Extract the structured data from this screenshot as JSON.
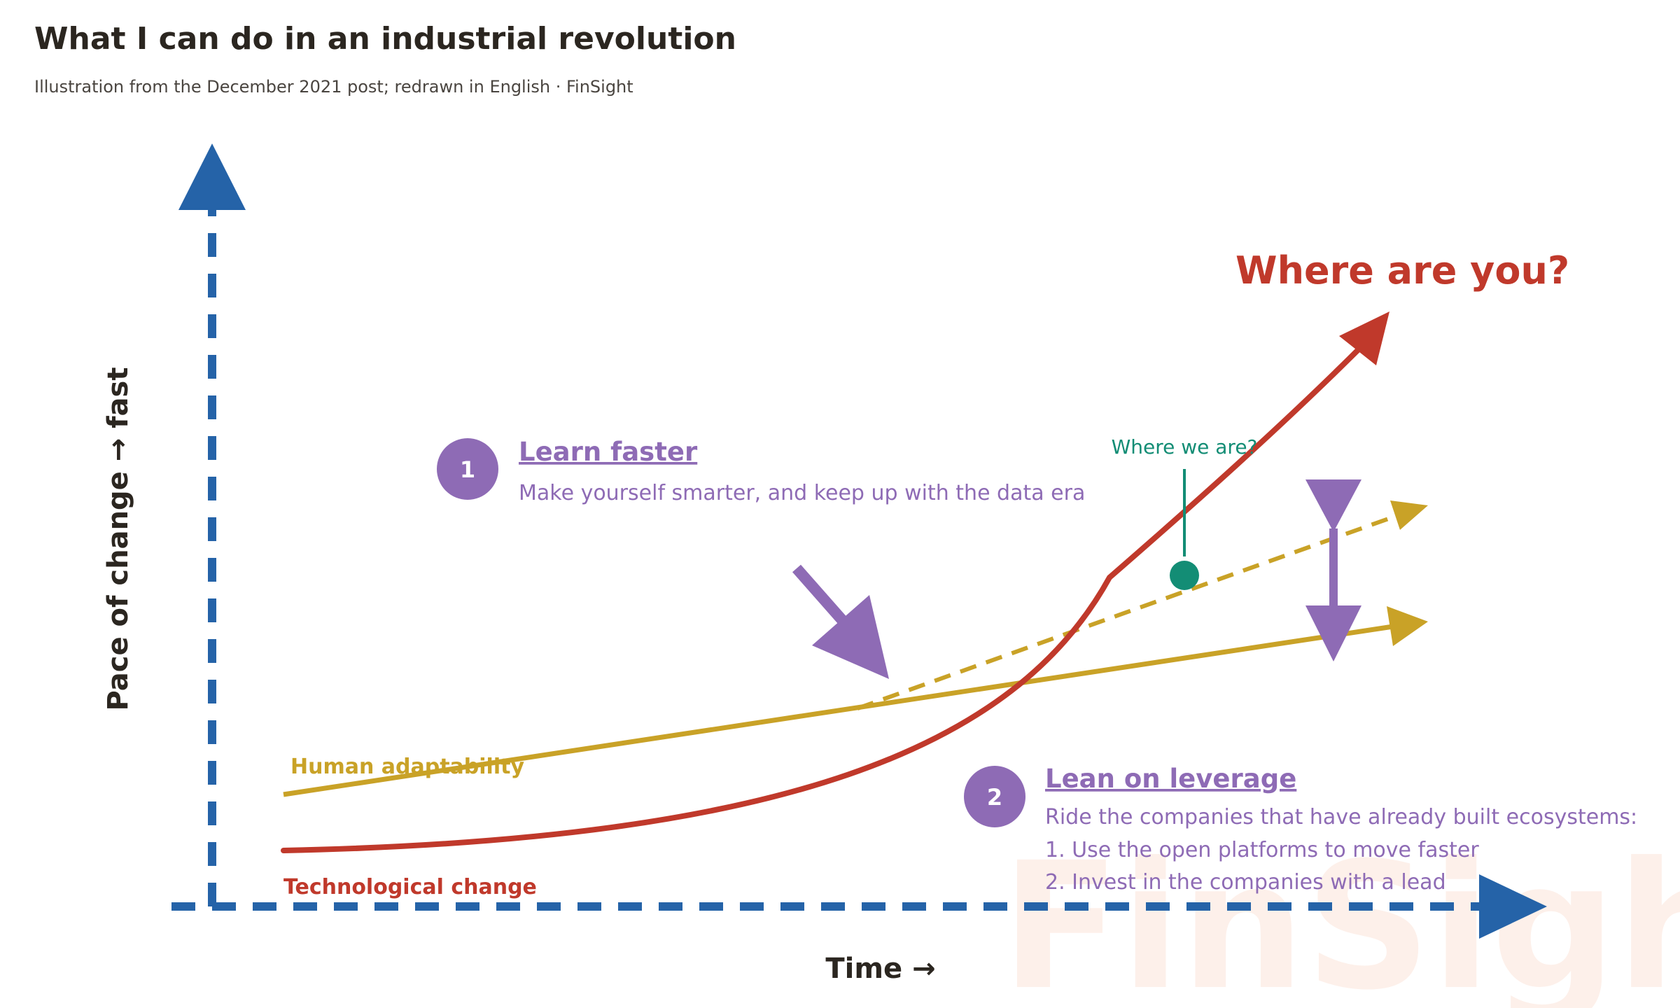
{
  "page": {
    "title": "What I can do in an industrial revolution",
    "subtitle": "Illustration from the December 2021 post; redrawn in English · FinSight"
  },
  "diagram": {
    "y_axis_label": "Pace of change → fast",
    "x_axis_label": "Time →",
    "human_line_label": "Human adaptability",
    "tech_line_label": "Technological change",
    "where_you_label": "Where are you?",
    "where_we_label": "Where we are?",
    "watermark": "FinSight",
    "colors": {
      "axis": "#2563a8",
      "human": "#c9a227",
      "tech": "#c0392b",
      "callout": "#8e6bb5",
      "marker": "#138d75"
    }
  },
  "callouts": [
    {
      "number": "1",
      "heading": "Learn faster",
      "lines": [
        "Make yourself smarter, and keep up with the data era"
      ]
    },
    {
      "number": "2",
      "heading": "Lean on leverage",
      "lines": [
        "Ride the companies that have already built ecosystems:",
        "1. Use the open platforms to move faster",
        "2. Invest in the companies with a lead"
      ]
    }
  ]
}
